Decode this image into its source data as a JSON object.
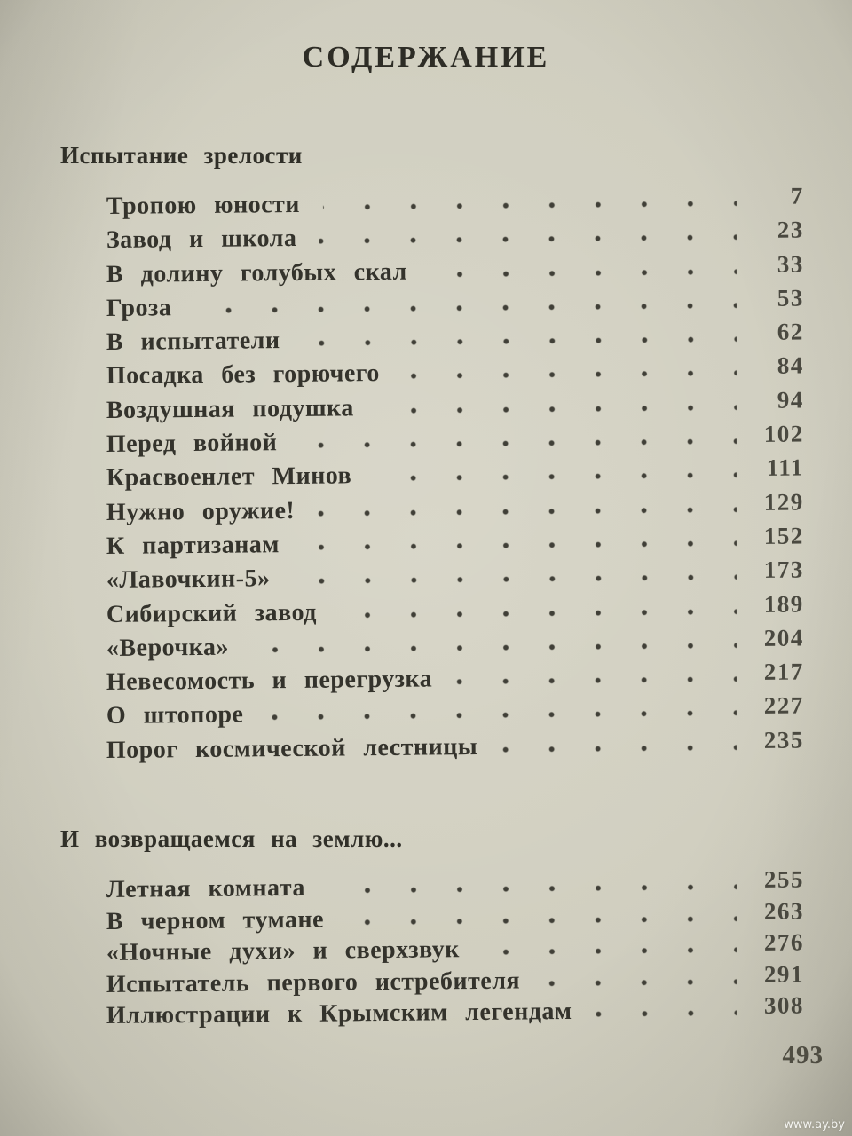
{
  "page": {
    "title": "СОДЕРЖАНИЕ",
    "page_number": "493",
    "watermark": "www.ay.by",
    "sections": [
      {
        "heading": "Испытание зрелости",
        "entries": [
          {
            "title": "Тропою юности",
            "page": "7"
          },
          {
            "title": "Завод и школа",
            "page": "23"
          },
          {
            "title": "В долину голубых скал",
            "page": "33"
          },
          {
            "title": "Гроза",
            "page": "53"
          },
          {
            "title": "В испытатели",
            "page": "62"
          },
          {
            "title": "Посадка без горючего",
            "page": "84"
          },
          {
            "title": "Воздушная подушка",
            "page": "94"
          },
          {
            "title": "Перед войной",
            "page": "102"
          },
          {
            "title": "Красвоенлет Минов",
            "page": "111"
          },
          {
            "title": "Нужно оружие!",
            "page": "129"
          },
          {
            "title": "К партизанам",
            "page": "152"
          },
          {
            "title": "«Лавочкин-5»",
            "page": "173"
          },
          {
            "title": "Сибирский завод",
            "page": "189"
          },
          {
            "title": "«Верочка»",
            "page": "204"
          },
          {
            "title": "Невесомость и перегрузка",
            "page": "217"
          },
          {
            "title": "О штопоре",
            "page": "227"
          },
          {
            "title": "Порог космической лестницы",
            "page": "235"
          }
        ]
      },
      {
        "heading": "И возвращаемся на землю...",
        "entries": [
          {
            "title": "Летная комната",
            "page": "255"
          },
          {
            "title": "В черном тумане",
            "page": "263"
          },
          {
            "title": "«Ночные духи» и сверхзвук",
            "page": "276"
          },
          {
            "title": "Испытатель первого истребителя",
            "page": "291"
          },
          {
            "title": "Иллюстрации к Крымским легендам",
            "page": "308"
          }
        ]
      }
    ]
  }
}
